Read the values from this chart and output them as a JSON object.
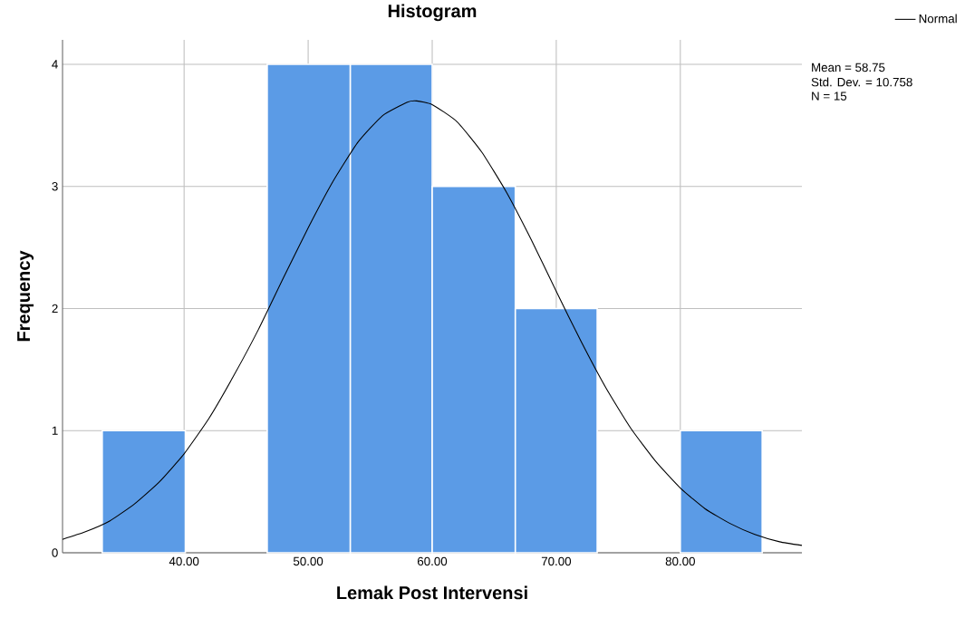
{
  "chart_data": {
    "type": "histogram",
    "title": "Histogram",
    "xlabel": "Lemak Post Intervensi",
    "ylabel": "Frequency",
    "bins": [
      33.4,
      40.1,
      46.7,
      53.4,
      60.0,
      66.7,
      73.3,
      80.0,
      86.6
    ],
    "values": [
      1,
      0,
      4,
      4,
      3,
      2,
      0,
      1
    ],
    "color": "#5b9be6",
    "series": [
      {
        "type": "line",
        "name": "Normal",
        "color": "#000000",
        "x": [
          30.2,
          32,
          34,
          36,
          38,
          40,
          42,
          44,
          46,
          48,
          50,
          52,
          54,
          56,
          58,
          58.75,
          60,
          62,
          64,
          66,
          68,
          70,
          72,
          74,
          76,
          78,
          80,
          82,
          84,
          86,
          88,
          89.8
        ],
        "values": [
          0.11,
          0.17,
          0.26,
          0.4,
          0.58,
          0.81,
          1.1,
          1.45,
          1.83,
          2.25,
          2.66,
          3.04,
          3.36,
          3.58,
          3.69,
          3.7,
          3.67,
          3.53,
          3.28,
          2.95,
          2.56,
          2.14,
          1.73,
          1.35,
          1.02,
          0.75,
          0.53,
          0.36,
          0.24,
          0.15,
          0.09,
          0.06
        ]
      }
    ],
    "annotations": [
      "Mean = 58.75",
      "Std. Dev. = 10.758",
      "N = 15"
    ],
    "xlim": [
      30.2,
      89.8
    ],
    "ylim": [
      0,
      4.2
    ],
    "xticks": [
      {
        "value": 40,
        "label": "40.00"
      },
      {
        "value": 50,
        "label": "50.00"
      },
      {
        "value": 60,
        "label": "60.00"
      },
      {
        "value": 70,
        "label": "70.00"
      },
      {
        "value": 80,
        "label": "80.00"
      }
    ],
    "yticks": [
      0,
      1,
      2,
      3,
      4
    ],
    "grid": true,
    "legend": "top right"
  }
}
